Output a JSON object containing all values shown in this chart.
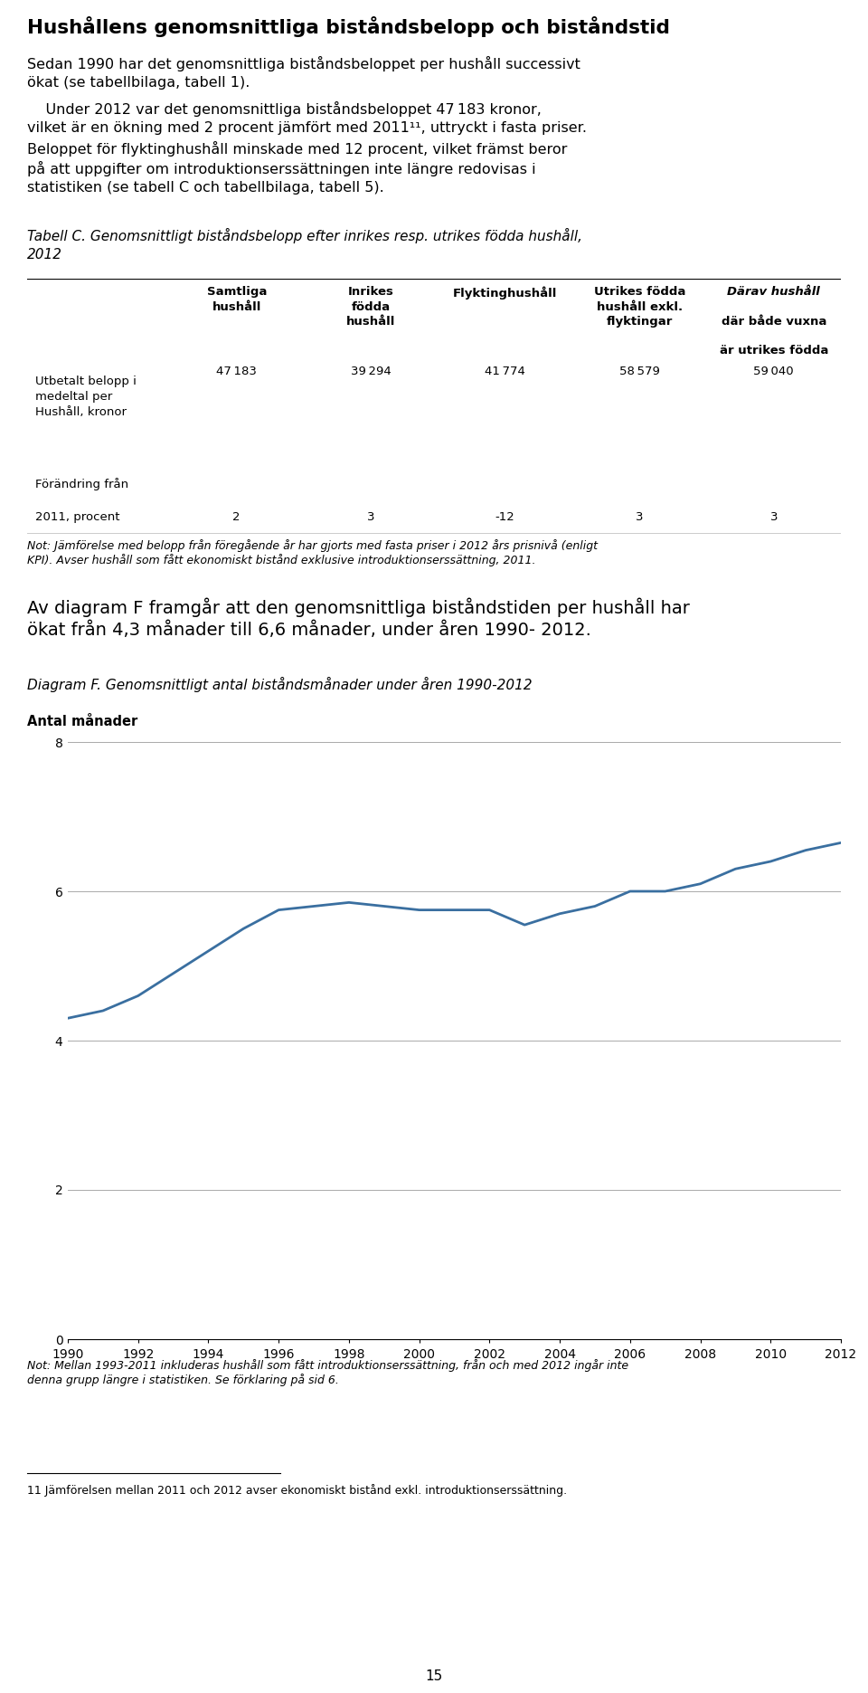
{
  "title": "Hushållens genomsnittliga biståndsbelopp och biståndstid",
  "para1_line1": "Sedan 1990 har det genomsnittliga biståndsbeloppet per hushåll successivt",
  "para1_line2": "ökat (se tabellbilaga, tabell 1).",
  "para2_line1": "    Under 2012 var det genomsnittliga biståndsbeloppet 47 183 kronor,",
  "para2_line2": "vilket är en ökning med 2 procent jämfört med 2011¹¹, uttryckt i fasta priser.",
  "para2_line3": "Beloppet för flyktinghushåll minskade med 12 procent, vilket främst beror",
  "para2_line4": "på att uppgifter om introduktionserssättningen inte längre redovisas i",
  "para2_line5": "statistiken (se tabell C och tabellbilaga, tabell 5).",
  "table_caption_line1": "Tabell C. Genomsnittligt biståndsbelopp efter inrikes resp. utrikes födda hushåll,",
  "table_caption_line2": "2012",
  "col_headers": [
    "Samtliga\nhushåll",
    "Inrikes\nfödda\nhushåll",
    "Flyktinghushåll",
    "Utrikes födda\nhushåll exkl.\nflyktingar",
    "Därav hushåll\ndär både vuxna\när utrikes födda"
  ],
  "row1_label": "Utbetalt belopp i\nmedeltal per\nHushåll, kronor",
  "row1_values": [
    "47 183",
    "39 294",
    "41 774",
    "58 579",
    "59 040"
  ],
  "row2_label_line1": "Förändring från",
  "row2_label_line2": "2011, procent",
  "row2_values": [
    "2",
    "3",
    "-12",
    "3",
    "3"
  ],
  "table_note_line1": "Not: Jämförelse med belopp från föregående år har gjorts med fasta priser i 2012 års prisnivå (enligt",
  "table_note_line2": "KPI). Avser hushåll som fått ekonomiskt bistånd exklusive introduktionserssättning, 2011.",
  "para3_line1": "Av diagram F framgår att den genomsnittliga biståndstiden per hushåll har",
  "para3_line2": "ökat från 4,3 månader till 6,6 månader, under åren 1990- 2012.",
  "diagram_caption": "Diagram F. Genomsnittligt antal biståndsmånader under åren 1990-2012",
  "ylabel": "Antal månader",
  "years": [
    1990,
    1991,
    1992,
    1993,
    1994,
    1995,
    1996,
    1997,
    1998,
    1999,
    2000,
    2001,
    2002,
    2003,
    2004,
    2005,
    2006,
    2007,
    2008,
    2009,
    2010,
    2011,
    2012
  ],
  "values": [
    4.3,
    4.4,
    4.6,
    4.9,
    5.2,
    5.5,
    5.75,
    5.8,
    5.85,
    5.8,
    5.75,
    5.75,
    5.75,
    5.55,
    5.7,
    5.8,
    6.0,
    6.0,
    6.1,
    6.3,
    6.4,
    6.55,
    6.65
  ],
  "line_color": "#3a6fa0",
  "diagram_note_line1": "Not: Mellan 1993-2011 inkluderas hushåll som fått introduktionserssättning, från och med 2012 ingår inte",
  "diagram_note_line2": "denna grupp längre i statistiken. Se förklaring på sid 6.",
  "footnote_sup": "11",
  "footnote_text": " Jämförelsen mellan 2011 och 2012 avser ekonomiskt bistånd exkl. introduktionserssättning.",
  "page_number": "15",
  "ylim": [
    0,
    8
  ],
  "yticks": [
    0,
    2,
    4,
    6,
    8
  ],
  "xticks": [
    1990,
    1992,
    1994,
    1996,
    1998,
    2000,
    2002,
    2004,
    2006,
    2008,
    2010,
    2012
  ]
}
